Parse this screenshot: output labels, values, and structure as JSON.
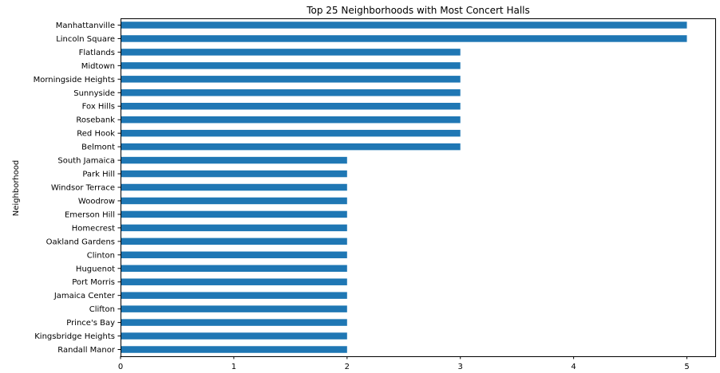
{
  "chart_data": {
    "type": "bar",
    "orientation": "horizontal",
    "title": "Top 25 Neighborhoods with Most Concert Halls",
    "xlabel": "",
    "ylabel": "Neighborhood",
    "xlim": [
      0,
      5.25
    ],
    "xticks": [
      "0",
      "1",
      "2",
      "3",
      "4",
      "5"
    ],
    "grid": false,
    "bar_color": "#1f77b4",
    "categories": [
      "Manhattanville",
      "Lincoln Square",
      "Flatlands",
      "Midtown",
      "Morningside Heights",
      "Sunnyside",
      "Fox Hills",
      "Rosebank",
      "Red Hook",
      "Belmont",
      "South Jamaica",
      "Park Hill",
      "Windsor Terrace",
      "Woodrow",
      "Emerson Hill",
      "Homecrest",
      "Oakland Gardens",
      "Clinton",
      "Huguenot",
      "Port Morris",
      "Jamaica Center",
      "Clifton",
      "Prince's Bay",
      "Kingsbridge Heights",
      "Randall Manor"
    ],
    "values": [
      5,
      5,
      3,
      3,
      3,
      3,
      3,
      3,
      3,
      3,
      2,
      2,
      2,
      2,
      2,
      2,
      2,
      2,
      2,
      2,
      2,
      2,
      2,
      2,
      2
    ]
  }
}
